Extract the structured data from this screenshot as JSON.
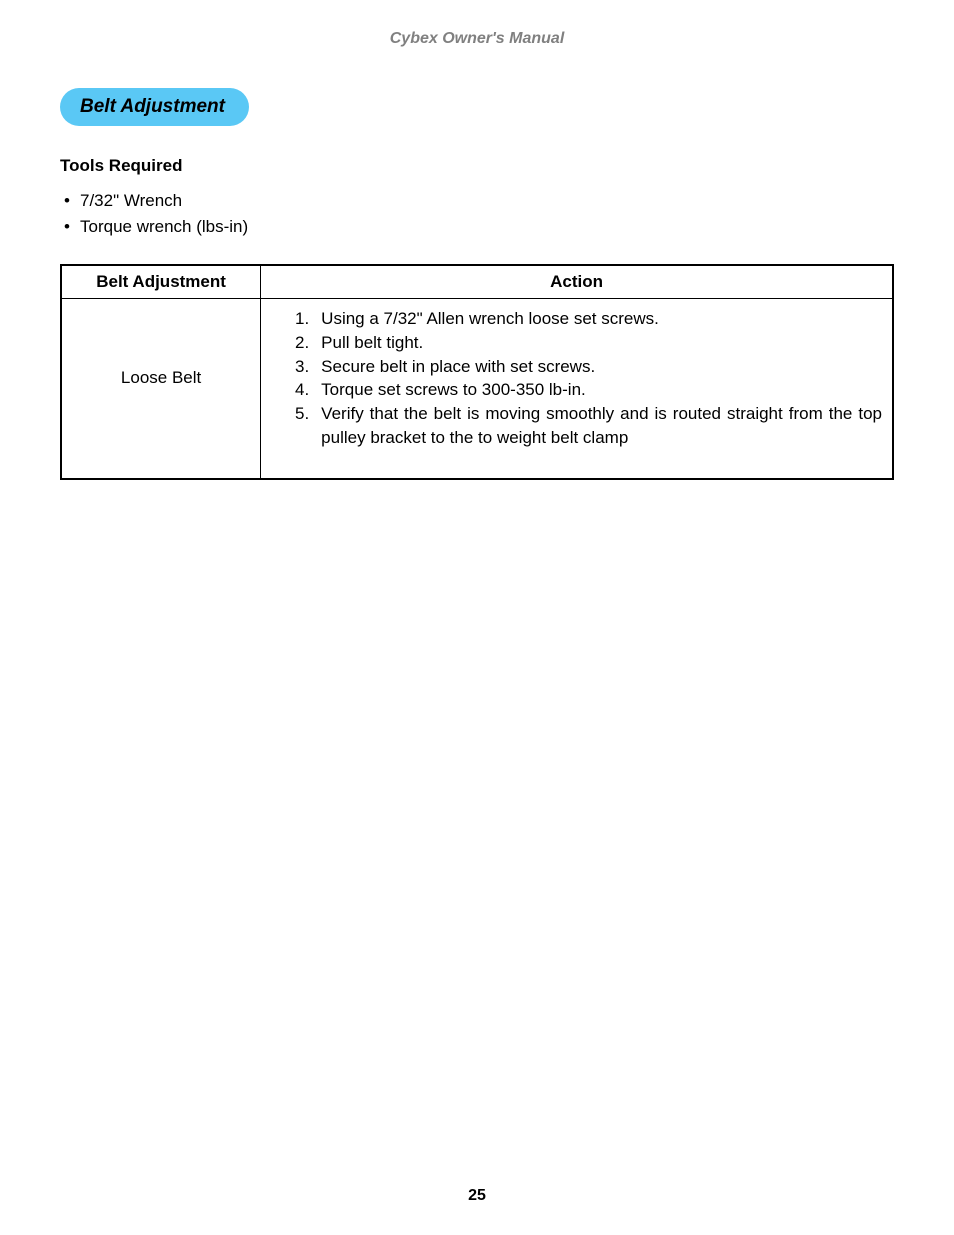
{
  "header": {
    "title": "Cybex Owner's Manual"
  },
  "section": {
    "title": "Belt Adjustment"
  },
  "tools": {
    "heading": "Tools Required",
    "items": [
      "7/32\" Wrench",
      "Torque wrench (lbs-in)"
    ]
  },
  "table": {
    "columns": [
      "Belt Adjustment",
      "Action"
    ],
    "column_widths": [
      "24%",
      "76%"
    ],
    "border_color": "#000000",
    "rows": [
      {
        "condition": "Loose Belt",
        "steps": [
          "Using a 7/32\" Allen wrench loose set screws.",
          "Pull belt tight.",
          "Secure belt in place with set screws.",
          "Torque set screws to 300-350 lb-in.",
          "Verify that the belt is moving smoothly and is routed straight from the top pulley bracket to the to weight belt clamp"
        ]
      }
    ]
  },
  "page_number": "25",
  "colors": {
    "pill_background": "#5ac8f5",
    "header_text": "#808080",
    "body_text": "#000000",
    "background": "#ffffff"
  },
  "typography": {
    "body_fontsize": 17,
    "header_fontsize": 16,
    "pill_fontsize": 19
  }
}
